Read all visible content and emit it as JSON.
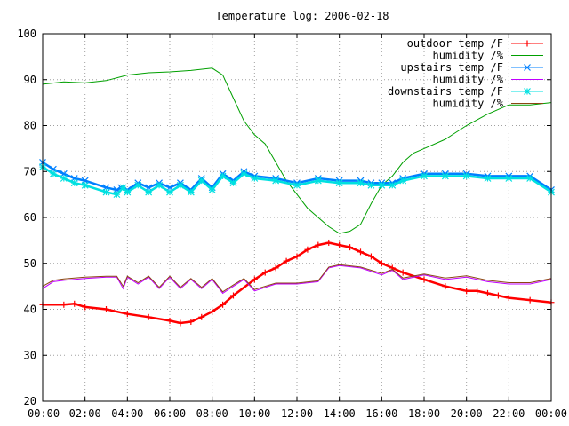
{
  "chart_data": {
    "type": "line",
    "title": "Temperature log: 2006-02-18",
    "xlabel": "",
    "ylabel": "",
    "xlim": [
      0,
      24
    ],
    "ylim": [
      20,
      100
    ],
    "grid": true,
    "legend_position": "top-right",
    "x_tick_labels": [
      "00:00",
      "02:00",
      "04:00",
      "06:00",
      "08:00",
      "10:00",
      "12:00",
      "14:00",
      "16:00",
      "18:00",
      "20:00",
      "22:00",
      "00:00"
    ],
    "y_tick_labels": [
      "20",
      "30",
      "40",
      "50",
      "60",
      "70",
      "80",
      "90",
      "100"
    ],
    "series": [
      {
        "name": "outdoor temp /F",
        "color": "#ff0000",
        "marker": "plus",
        "x": [
          0,
          1,
          1.5,
          2,
          3,
          4,
          5,
          6,
          6.5,
          7,
          7.5,
          8,
          8.5,
          9,
          10,
          10.5,
          11,
          11.5,
          12,
          12.5,
          13,
          13.5,
          14,
          14.5,
          15,
          15.5,
          16,
          16.5,
          17,
          18,
          19,
          20,
          20.5,
          21,
          21.5,
          22,
          23,
          24
        ],
        "y": [
          41,
          41,
          41.2,
          40.5,
          40,
          39,
          38.3,
          37.5,
          37,
          37.3,
          38.3,
          39.5,
          41,
          43,
          46.5,
          48,
          49,
          50.5,
          51.5,
          53,
          54,
          54.5,
          54,
          53.5,
          52.5,
          51.5,
          50,
          49,
          48,
          46.5,
          45,
          44,
          44,
          43.5,
          43,
          42.5,
          42,
          41.5
        ]
      },
      {
        "name": "humidity /%",
        "color": "#00a000",
        "x": [
          0,
          1,
          2,
          3,
          4,
          5,
          6,
          7,
          8,
          8.5,
          9,
          9.5,
          10,
          10.5,
          11,
          11.5,
          12,
          12.5,
          13,
          13.5,
          14,
          14.5,
          15,
          15.5,
          16,
          16.5,
          17,
          17.5,
          18,
          19,
          20,
          21,
          22,
          23,
          24
        ],
        "y": [
          89,
          89.5,
          89.3,
          89.8,
          91,
          91.5,
          91.7,
          92,
          92.5,
          91,
          86,
          81,
          78,
          76,
          72,
          68,
          65,
          62,
          60,
          58,
          56.5,
          57,
          58.5,
          63,
          67,
          69,
          72,
          74,
          75,
          77,
          80,
          82.5,
          84.5,
          84.5,
          85
        ]
      },
      {
        "name": "upstairs temp /F",
        "color": "#0080ff",
        "marker": "cross",
        "x": [
          0,
          0.5,
          1,
          1.5,
          2,
          3,
          3.5,
          3.7,
          4,
          4.5,
          5,
          5.5,
          6,
          6.5,
          7,
          7.5,
          8,
          8.5,
          9,
          9.5,
          10,
          11,
          12,
          13,
          14,
          15,
          15.5,
          16,
          16.5,
          17,
          18,
          19,
          20,
          21,
          22,
          23,
          24
        ],
        "y": [
          72,
          70.5,
          69.5,
          68.5,
          68,
          66.5,
          66,
          66.5,
          66,
          67.5,
          66.5,
          67.5,
          66.5,
          67.5,
          66,
          68.5,
          66.5,
          69.5,
          68,
          70,
          69,
          68.5,
          67.5,
          68.5,
          68,
          68,
          67.5,
          67.5,
          67.5,
          68.5,
          69.5,
          69.5,
          69.5,
          69,
          69,
          69,
          66
        ]
      },
      {
        "name": "humidity /%",
        "color": "#c000ff",
        "x": [
          0,
          0.5,
          1,
          2,
          3,
          3.5,
          3.8,
          4,
          4.5,
          5,
          5.5,
          6,
          6.5,
          7,
          7.5,
          8,
          8.5,
          9,
          9.5,
          10,
          11,
          12,
          13,
          13.5,
          14,
          15,
          16,
          16.5,
          17,
          18,
          19,
          20,
          21,
          22,
          23,
          24
        ],
        "y": [
          44.5,
          46,
          46.3,
          46.7,
          47,
          47,
          44.5,
          47,
          45.5,
          47,
          44.5,
          47,
          44.5,
          46.5,
          44.5,
          46.5,
          43.5,
          45,
          46.5,
          44,
          45.5,
          45.5,
          46,
          49,
          49.5,
          49,
          47.5,
          48.5,
          46.5,
          47.5,
          46.5,
          47,
          46,
          45.5,
          45.5,
          46.5
        ]
      },
      {
        "name": "downstairs temp /F",
        "color": "#00e0e0",
        "marker": "star",
        "x": [
          0,
          0.5,
          1,
          1.5,
          2,
          3,
          3.5,
          3.8,
          4,
          4.5,
          5,
          5.5,
          6,
          6.5,
          7,
          7.5,
          8,
          8.5,
          9,
          9.5,
          10,
          11,
          12,
          13,
          14,
          15,
          15.5,
          16,
          16.5,
          17,
          18,
          19,
          20,
          21,
          22,
          23,
          24
        ],
        "y": [
          71,
          69.5,
          68.5,
          67.5,
          67,
          65.5,
          65,
          66.5,
          65.5,
          67,
          65.5,
          67,
          65.5,
          67,
          65.5,
          68,
          66,
          69,
          67.5,
          69.5,
          68.5,
          68,
          67,
          68,
          67.5,
          67.5,
          67,
          67,
          67,
          68,
          69,
          69,
          69,
          68.5,
          68.5,
          68.5,
          65.5
        ]
      },
      {
        "name": "humidity /%",
        "color": "#8b4513",
        "x": [
          0,
          0.5,
          1,
          2,
          3,
          3.5,
          3.8,
          4,
          4.5,
          5,
          5.5,
          6,
          6.5,
          7,
          7.5,
          8,
          8.5,
          9,
          9.5,
          10,
          11,
          12,
          13,
          13.5,
          14,
          15,
          16,
          16.5,
          17,
          18,
          19,
          20,
          21,
          22,
          23,
          24
        ],
        "y": [
          45,
          46.3,
          46.6,
          47,
          47.2,
          47.2,
          45,
          47.2,
          45.8,
          47.2,
          44.8,
          47.2,
          44.8,
          46.7,
          44.8,
          46.7,
          43.8,
          45.3,
          46.7,
          44.3,
          45.7,
          45.7,
          46.2,
          49.2,
          49.7,
          49.2,
          47.8,
          48.7,
          46.8,
          47.7,
          46.8,
          47.3,
          46.3,
          45.8,
          45.8,
          46.7
        ]
      }
    ]
  }
}
